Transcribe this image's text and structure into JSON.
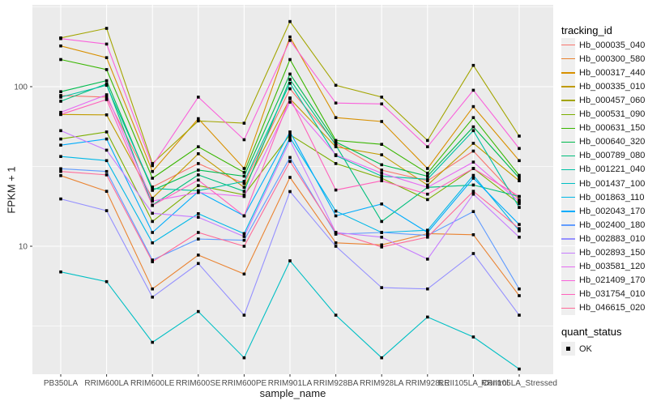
{
  "colors": {
    "panel_background": "#EBEBEB",
    "gridline": "#FFFFFF",
    "point": "#000000",
    "tick_text": "#4D4D4D",
    "axis_title_text": "#1A1A1A",
    "legend_key_background": "#EFEFEF"
  },
  "legend": {
    "tracking_title": "tracking_id",
    "quant_title": "quant_status",
    "quant_label": "OK"
  },
  "chart_data": {
    "type": "line",
    "title": "",
    "xlabel": "sample_name",
    "ylabel": "FPKM + 1",
    "y_scale": "log10",
    "ylim": [
      1.5,
      320
    ],
    "y_ticks": [
      10,
      100
    ],
    "y_minor_gridlines": [
      3.16,
      31.6,
      316
    ],
    "grid": true,
    "legend_position": "right",
    "point_shape": "filled-square",
    "categories": [
      "PB350LA",
      "RRIM600LA",
      "RRIM600LE",
      "RRIM600SE",
      "RRIM600PE",
      "RRIM901LA",
      "RRIM928BA",
      "RRIM928LA",
      "RRIM928LE",
      "RRII105LA_Control",
      "RRII105LA_Stressed"
    ],
    "series": [
      {
        "name": "Hb_000035_040",
        "color": "#F8766D",
        "values": [
          88,
          86,
          23.5,
          33,
          24.7,
          97,
          44,
          30,
          25.7,
          39.5,
          19.5
        ]
      },
      {
        "name": "Hb_000300_580",
        "color": "#EA8331",
        "values": [
          27.7,
          22.1,
          5.4,
          8.8,
          6.7,
          27,
          10.5,
          10.2,
          12,
          11.8,
          4.9
        ]
      },
      {
        "name": "Hb_000317_440",
        "color": "#D89000",
        "values": [
          180,
          152,
          29.4,
          63,
          30.7,
          205,
          64,
          60.5,
          30.7,
          75,
          34.4
        ]
      },
      {
        "name": "Hb_000335_010",
        "color": "#C09B00",
        "values": [
          67,
          66.6,
          20,
          38,
          23.4,
          84,
          42,
          37.4,
          24.2,
          44.2,
          25.7
        ]
      },
      {
        "name": "Hb_000457_060",
        "color": "#A3A500",
        "values": [
          202,
          232,
          33,
          61,
          59,
          256,
          102,
          86,
          46,
          136,
          49
        ]
      },
      {
        "name": "Hb_000531_090",
        "color": "#7CAE00",
        "values": [
          47,
          52,
          14.3,
          24,
          21,
          50,
          33,
          26.7,
          19.6,
          30.7,
          18.5
        ]
      },
      {
        "name": "Hb_000631_150",
        "color": "#39B600",
        "values": [
          148,
          128,
          26.7,
          42,
          29,
          148,
          46,
          43.5,
          28.7,
          64,
          27.8
        ]
      },
      {
        "name": "Hb_000640_320",
        "color": "#00BB4E",
        "values": [
          93,
          109,
          22.4,
          30,
          27.5,
          120,
          45,
          32.4,
          27.5,
          56,
          26.8
        ]
      },
      {
        "name": "Hb_000789_080",
        "color": "#00BF7D",
        "values": [
          81,
          104,
          18.1,
          28,
          22.1,
          111,
          43,
          14.3,
          23.4,
          24.2,
          20.5
        ]
      },
      {
        "name": "Hb_001221_040",
        "color": "#00C1A3",
        "values": [
          86,
          102,
          23,
          22.3,
          25.5,
          105,
          37,
          27.5,
          26.3,
          53,
          17.5
        ]
      },
      {
        "name": "Hb_001437_100",
        "color": "#00BFC4",
        "values": [
          6.9,
          6,
          2.5,
          3.9,
          2,
          8.1,
          3.7,
          2,
          3.6,
          2.7,
          1.7
        ]
      },
      {
        "name": "Hb_001863_110",
        "color": "#00B8E7",
        "values": [
          36.5,
          34.4,
          10.5,
          16,
          12,
          48,
          16.6,
          12.2,
          12.6,
          27.8,
          12.5
        ]
      },
      {
        "name": "Hb_002043_170",
        "color": "#00ACFC",
        "values": [
          43,
          47,
          12.2,
          22,
          15.5,
          52,
          15.5,
          18.4,
          12.2,
          26.7,
          13.7
        ]
      },
      {
        "name": "Hb_002400_180",
        "color": "#619CFF",
        "values": [
          30.6,
          29.4,
          8.2,
          11.1,
          10.9,
          36,
          11.9,
          12.2,
          11.7,
          16.5,
          5.4
        ]
      },
      {
        "name": "Hb_002883_010",
        "color": "#9590FF",
        "values": [
          19.8,
          16.7,
          4.8,
          7.8,
          3.7,
          22,
          10,
          5.5,
          5.4,
          9,
          3.7
        ]
      },
      {
        "name": "Hb_002893_150",
        "color": "#C77CFF",
        "values": [
          53,
          40,
          16.1,
          15.2,
          11.5,
          46,
          12.2,
          11.4,
          8.3,
          21.2,
          11.4
        ]
      },
      {
        "name": "Hb_003581_120",
        "color": "#E76BF3",
        "values": [
          69,
          89,
          19.2,
          21.7,
          20.5,
          80,
          37.4,
          28.7,
          23.4,
          33.7,
          19
        ]
      },
      {
        "name": "Hb_021409_170",
        "color": "#FA62DB",
        "values": [
          200,
          185,
          32,
          86,
          46.5,
          195,
          79,
          78,
          42,
          95,
          41
        ]
      },
      {
        "name": "Hb_031754_010",
        "color": "#FF62BC",
        "values": [
          67,
          83,
          18,
          26,
          15.5,
          85,
          22.5,
          25.7,
          21.2,
          30.7,
          20.5
        ]
      },
      {
        "name": "Hb_046615_020",
        "color": "#FF6A98",
        "values": [
          29.4,
          28,
          8,
          12.2,
          10,
          34,
          12.2,
          9.9,
          11.4,
          22.1,
          12.9
        ]
      }
    ]
  }
}
